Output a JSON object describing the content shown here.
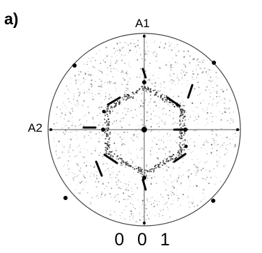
{
  "panel": {
    "label": "a)"
  },
  "axes": {
    "top_label": "A1",
    "left_label": "A2"
  },
  "pole": {
    "label": "0 0 1"
  },
  "colors": {
    "ink": "#000000",
    "circle": "#444444",
    "background": "#ffffff"
  }
}
